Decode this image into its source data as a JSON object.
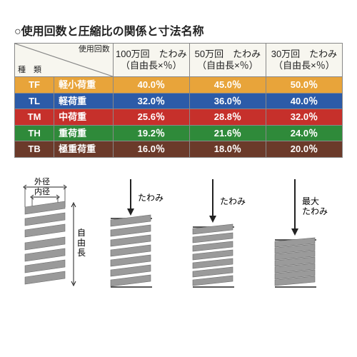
{
  "title": "○使用回数と圧縮比の関係と寸法名称",
  "table": {
    "corner_top": "使用回数",
    "corner_bottom": "種　類",
    "columns": [
      {
        "line1": "100万回　たわみ",
        "line2": "（自由長×％）"
      },
      {
        "line1": "50万回　たわみ",
        "line2": "（自由長×％）"
      },
      {
        "line1": "30万回　たわみ",
        "line2": "（自由長×％）"
      }
    ],
    "rows": [
      {
        "cls": "row-tf",
        "code": "TF",
        "name": "軽小荷重",
        "v": [
          "40.0％",
          "45.0％",
          "50.0％"
        ]
      },
      {
        "cls": "row-tl",
        "code": "TL",
        "name": "軽荷重",
        "v": [
          "32.0％",
          "36.0％",
          "40.0％"
        ]
      },
      {
        "cls": "row-tm",
        "code": "TM",
        "name": "中荷重",
        "v": [
          "25.6％",
          "28.8％",
          "32.0％"
        ]
      },
      {
        "cls": "row-th",
        "code": "TH",
        "name": "重荷重",
        "v": [
          "19.2％",
          "21.6％",
          "24.0％"
        ]
      },
      {
        "cls": "row-tb",
        "code": "TB",
        "name": "極重荷重",
        "v": [
          "16.0％",
          "18.0％",
          "20.0％"
        ]
      }
    ]
  },
  "diagrams": {
    "outer_d": "外径",
    "inner_d": "内径",
    "free_len": "自由長",
    "deflection": "たわみ",
    "max_deflection": "最大\nたわみ",
    "spring_color": "#9a9a9a",
    "spring_stroke": "#6a6a6a",
    "arrow_color": "#222222"
  }
}
